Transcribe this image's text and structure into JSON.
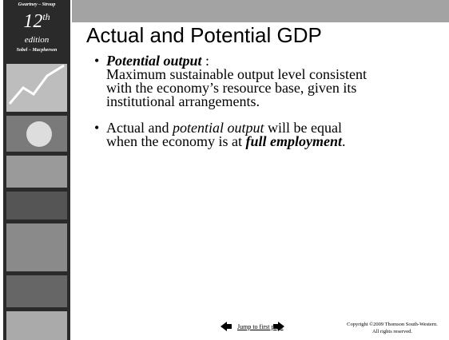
{
  "sidebar": {
    "authors_top": "Gwartney – Stroup",
    "edition_number": "12",
    "edition_suffix": "th",
    "edition_word": "edition",
    "authors_bottom": "Sobel – Macpherson"
  },
  "title": "Actual and Potential GDP",
  "bullets": [
    {
      "term": "Potential output",
      "separator": " :",
      "lines": [
        "Maximum sustainable output level consistent",
        "with the economy’s resource base, given its",
        "institutional arrangements."
      ]
    },
    {
      "lines": [
        [
          {
            "text": "Actual and ",
            "style": "normal"
          },
          {
            "text": "potential output",
            "style": "italic"
          },
          {
            "text": " will be equal",
            "style": "normal"
          }
        ],
        [
          {
            "text": "when the economy is at ",
            "style": "normal"
          },
          {
            "text": "full employment",
            "style": "bold-italic"
          },
          {
            "text": ".",
            "style": "normal"
          }
        ]
      ]
    }
  ],
  "footer": {
    "link": "Jump to first page",
    "copyright_lines": [
      "Copyright ©2009  Thomson South-Western.",
      "All rights reserved."
    ]
  }
}
